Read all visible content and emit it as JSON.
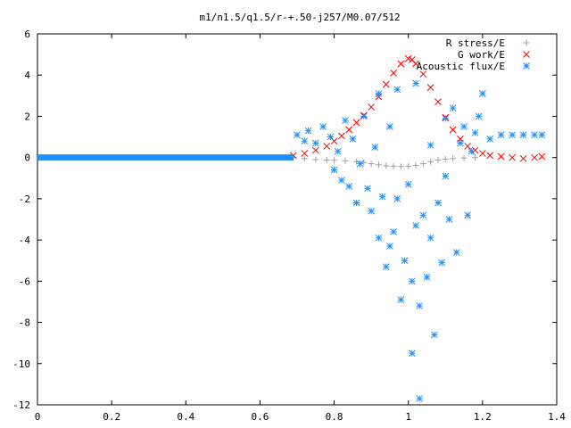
{
  "chart_data": {
    "type": "scatter",
    "title": "m1/n1.5/q1.5/r-+.50-j257/M0.07/512",
    "xlabel": "",
    "ylabel": "",
    "xlim": [
      0,
      1.4
    ],
    "ylim": [
      -12,
      6
    ],
    "x_ticks": [
      "0",
      "0.2",
      "0.4",
      "0.6",
      "0.8",
      "1",
      "1.2",
      "1.4"
    ],
    "y_ticks": [
      "-12",
      "-10",
      "-8",
      "-6",
      "-4",
      "-2",
      "0",
      "2",
      "4",
      "6"
    ],
    "grid": false,
    "legend_position": "top-right",
    "series": [
      {
        "name": "R stress/E",
        "marker": "plus",
        "color": "#a0a0a0",
        "points": [
          [
            0.69,
            0.0
          ],
          [
            0.72,
            -0.05
          ],
          [
            0.75,
            -0.1
          ],
          [
            0.78,
            -0.12
          ],
          [
            0.8,
            -0.13
          ],
          [
            0.83,
            -0.16
          ],
          [
            0.86,
            -0.2
          ],
          [
            0.88,
            -0.24
          ],
          [
            0.9,
            -0.3
          ],
          [
            0.92,
            -0.35
          ],
          [
            0.94,
            -0.4
          ],
          [
            0.96,
            -0.42
          ],
          [
            0.98,
            -0.44
          ],
          [
            1.0,
            -0.42
          ],
          [
            1.02,
            -0.38
          ],
          [
            1.04,
            -0.3
          ],
          [
            1.06,
            -0.2
          ],
          [
            1.08,
            -0.12
          ],
          [
            1.1,
            -0.08
          ],
          [
            1.12,
            -0.05
          ],
          [
            1.15,
            -0.02
          ],
          [
            1.18,
            0.0
          ]
        ]
      },
      {
        "name": "G work/E",
        "marker": "cross",
        "color": "#ff0000",
        "points": [
          [
            0.69,
            0.1
          ],
          [
            0.72,
            0.2
          ],
          [
            0.75,
            0.35
          ],
          [
            0.78,
            0.55
          ],
          [
            0.8,
            0.8
          ],
          [
            0.82,
            1.05
          ],
          [
            0.84,
            1.35
          ],
          [
            0.86,
            1.7
          ],
          [
            0.88,
            2.05
          ],
          [
            0.9,
            2.45
          ],
          [
            0.92,
            2.95
          ],
          [
            0.94,
            3.55
          ],
          [
            0.96,
            4.1
          ],
          [
            0.98,
            4.55
          ],
          [
            1.0,
            4.8
          ],
          [
            1.01,
            4.75
          ],
          [
            1.02,
            4.55
          ],
          [
            1.04,
            4.05
          ],
          [
            1.06,
            3.4
          ],
          [
            1.08,
            2.7
          ],
          [
            1.1,
            1.95
          ],
          [
            1.12,
            1.35
          ],
          [
            1.14,
            0.9
          ],
          [
            1.16,
            0.55
          ],
          [
            1.18,
            0.35
          ],
          [
            1.2,
            0.2
          ],
          [
            1.22,
            0.1
          ],
          [
            1.25,
            0.05
          ],
          [
            1.28,
            0.0
          ],
          [
            1.31,
            -0.05
          ],
          [
            1.34,
            0.0
          ],
          [
            1.36,
            0.05
          ]
        ]
      },
      {
        "name": "Acoustic flux/E",
        "marker": "star",
        "color": "#1e90ff",
        "points": [
          [
            0.7,
            1.1
          ],
          [
            0.72,
            0.8
          ],
          [
            0.73,
            1.3
          ],
          [
            0.75,
            0.7
          ],
          [
            0.77,
            1.5
          ],
          [
            0.79,
            1.0
          ],
          [
            0.8,
            -0.6
          ],
          [
            0.81,
            0.3
          ],
          [
            0.82,
            -1.1
          ],
          [
            0.83,
            1.8
          ],
          [
            0.84,
            -1.4
          ],
          [
            0.85,
            0.9
          ],
          [
            0.86,
            -2.2
          ],
          [
            0.87,
            -0.3
          ],
          [
            0.88,
            2.0
          ],
          [
            0.89,
            -1.5
          ],
          [
            0.9,
            -2.6
          ],
          [
            0.91,
            0.5
          ],
          [
            0.92,
            3.1
          ],
          [
            0.92,
            -3.9
          ],
          [
            0.93,
            -1.9
          ],
          [
            0.94,
            -5.3
          ],
          [
            0.95,
            -4.3
          ],
          [
            0.95,
            1.5
          ],
          [
            0.96,
            -3.6
          ],
          [
            0.97,
            3.3
          ],
          [
            0.97,
            -2.0
          ],
          [
            0.98,
            -6.9
          ],
          [
            0.99,
            -5.0
          ],
          [
            1.0,
            -1.3
          ],
          [
            1.01,
            -9.5
          ],
          [
            1.01,
            -6.0
          ],
          [
            1.02,
            3.6
          ],
          [
            1.02,
            -3.3
          ],
          [
            1.03,
            -7.2
          ],
          [
            1.03,
            -11.7
          ],
          [
            1.04,
            -2.8
          ],
          [
            1.05,
            -5.8
          ],
          [
            1.06,
            0.6
          ],
          [
            1.06,
            -3.9
          ],
          [
            1.07,
            -8.6
          ],
          [
            1.08,
            -2.2
          ],
          [
            1.09,
            -5.1
          ],
          [
            1.1,
            1.9
          ],
          [
            1.1,
            -0.9
          ],
          [
            1.11,
            -3.0
          ],
          [
            1.12,
            2.4
          ],
          [
            1.13,
            -4.6
          ],
          [
            1.14,
            0.7
          ],
          [
            1.15,
            1.5
          ],
          [
            1.16,
            -2.8
          ],
          [
            1.17,
            0.3
          ],
          [
            1.18,
            1.2
          ],
          [
            1.19,
            2.0
          ],
          [
            1.2,
            3.1
          ],
          [
            1.22,
            0.9
          ],
          [
            1.25,
            1.1
          ],
          [
            1.28,
            1.1
          ],
          [
            1.31,
            1.1
          ],
          [
            1.34,
            1.1
          ],
          [
            1.36,
            1.1
          ]
        ],
        "baseline_segment": {
          "x_start": 0.0,
          "x_end": 0.69,
          "y": 0
        }
      }
    ]
  }
}
